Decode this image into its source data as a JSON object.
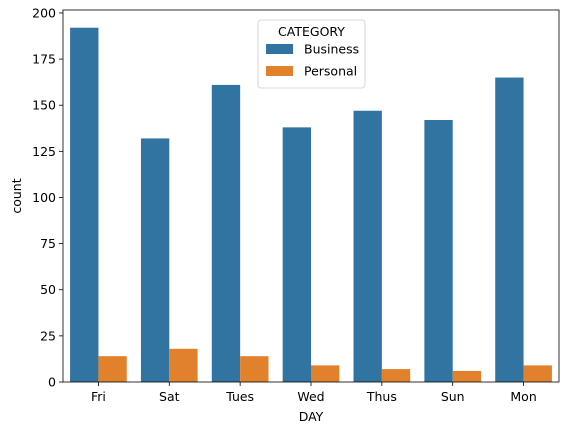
{
  "chart_data": {
    "type": "bar",
    "categories": [
      "Fri",
      "Sat",
      "Tues",
      "Wed",
      "Thus",
      "Sun",
      "Mon"
    ],
    "series": [
      {
        "name": "Business",
        "values": [
          192,
          132,
          161,
          138,
          147,
          142,
          165
        ],
        "color": "#3274a1"
      },
      {
        "name": "Personal",
        "values": [
          14,
          18,
          14,
          9,
          7,
          6,
          9
        ],
        "color": "#e1812c"
      }
    ],
    "xlabel": "DAY",
    "ylabel": "count",
    "ylim": [
      0,
      201.6
    ],
    "yticks": [
      0,
      25,
      50,
      75,
      100,
      125,
      150,
      175,
      200
    ],
    "legend": {
      "title": "CATEGORY",
      "placement": "top-center"
    },
    "grid": false
  }
}
